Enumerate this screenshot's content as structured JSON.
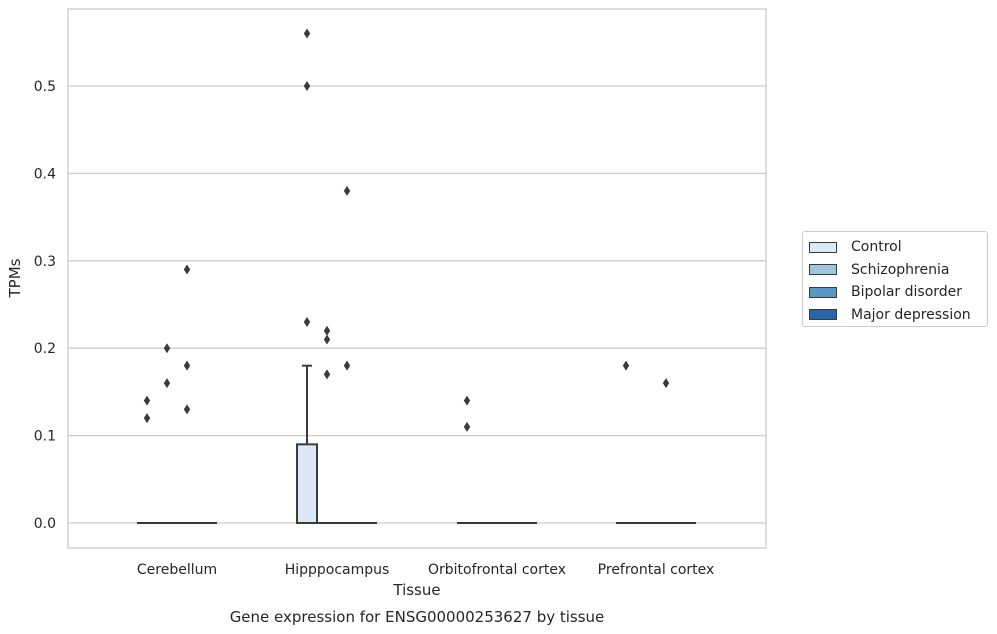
{
  "chart_data": {
    "type": "box",
    "caption": "Gene expression for ENSG00000253627 by tissue",
    "xlabel": "Tissue",
    "ylabel": "TPMs",
    "ylim": [
      -0.028,
      0.59
    ],
    "yticks": [
      0.0,
      0.1,
      0.2,
      0.3,
      0.4,
      0.5
    ],
    "ytick_labels": [
      "0.0",
      "0.1",
      "0.2",
      "0.3",
      "0.4",
      "0.5"
    ],
    "grid": "horizontal",
    "categories": [
      "Cerebellum",
      "Hipppocampus",
      "Orbitofrontal cortex",
      "Prefrontal cortex"
    ],
    "series": [
      {
        "name": "Control",
        "color": "#dbe8f5"
      },
      {
        "name": "Schizophrenia",
        "color": "#a0c6de"
      },
      {
        "name": "Bipolar disorder",
        "color": "#5698c6"
      },
      {
        "name": "Major depression",
        "color": "#2566a8"
      }
    ],
    "boxes": [
      {
        "category": "Cerebellum",
        "series": "Control",
        "q1": 0.0,
        "median": 0.0,
        "q3": 0.0,
        "whisker_low": 0.0,
        "whisker_high": 0.0,
        "outliers": [
          0.12,
          0.14
        ]
      },
      {
        "category": "Cerebellum",
        "series": "Schizophrenia",
        "q1": 0.0,
        "median": 0.0,
        "q3": 0.0,
        "whisker_low": 0.0,
        "whisker_high": 0.0,
        "outliers": [
          0.16,
          0.2
        ]
      },
      {
        "category": "Cerebellum",
        "series": "Bipolar disorder",
        "q1": 0.0,
        "median": 0.0,
        "q3": 0.0,
        "whisker_low": 0.0,
        "whisker_high": 0.0,
        "outliers": [
          0.13,
          0.18,
          0.29
        ]
      },
      {
        "category": "Cerebellum",
        "series": "Major depression",
        "q1": 0.0,
        "median": 0.0,
        "q3": 0.0,
        "whisker_low": 0.0,
        "whisker_high": 0.0,
        "outliers": []
      },
      {
        "category": "Hipppocampus",
        "series": "Control",
        "q1": 0.0,
        "median": 0.0,
        "q3": 0.09,
        "whisker_low": 0.0,
        "whisker_high": 0.18,
        "outliers": [
          0.23,
          0.5,
          0.56
        ]
      },
      {
        "category": "Hipppocampus",
        "series": "Schizophrenia",
        "q1": 0.0,
        "median": 0.0,
        "q3": 0.0,
        "whisker_low": 0.0,
        "whisker_high": 0.0,
        "outliers": [
          0.17,
          0.21,
          0.22
        ]
      },
      {
        "category": "Hipppocampus",
        "series": "Bipolar disorder",
        "q1": 0.0,
        "median": 0.0,
        "q3": 0.0,
        "whisker_low": 0.0,
        "whisker_high": 0.0,
        "outliers": [
          0.18,
          0.38
        ]
      },
      {
        "category": "Hipppocampus",
        "series": "Major depression",
        "q1": 0.0,
        "median": 0.0,
        "q3": 0.0,
        "whisker_low": 0.0,
        "whisker_high": 0.0,
        "outliers": []
      },
      {
        "category": "Orbitofrontal cortex",
        "series": "Control",
        "q1": 0.0,
        "median": 0.0,
        "q3": 0.0,
        "whisker_low": 0.0,
        "whisker_high": 0.0,
        "outliers": [
          0.11,
          0.14
        ]
      },
      {
        "category": "Orbitofrontal cortex",
        "series": "Schizophrenia",
        "q1": 0.0,
        "median": 0.0,
        "q3": 0.0,
        "whisker_low": 0.0,
        "whisker_high": 0.0,
        "outliers": []
      },
      {
        "category": "Orbitofrontal cortex",
        "series": "Bipolar disorder",
        "q1": 0.0,
        "median": 0.0,
        "q3": 0.0,
        "whisker_low": 0.0,
        "whisker_high": 0.0,
        "outliers": []
      },
      {
        "category": "Orbitofrontal cortex",
        "series": "Major depression",
        "q1": 0.0,
        "median": 0.0,
        "q3": 0.0,
        "whisker_low": 0.0,
        "whisker_high": 0.0,
        "outliers": []
      },
      {
        "category": "Prefrontal cortex",
        "series": "Control",
        "q1": 0.0,
        "median": 0.0,
        "q3": 0.0,
        "whisker_low": 0.0,
        "whisker_high": 0.0,
        "outliers": [
          0.18
        ]
      },
      {
        "category": "Prefrontal cortex",
        "series": "Schizophrenia",
        "q1": 0.0,
        "median": 0.0,
        "q3": 0.0,
        "whisker_low": 0.0,
        "whisker_high": 0.0,
        "outliers": []
      },
      {
        "category": "Prefrontal cortex",
        "series": "Bipolar disorder",
        "q1": 0.0,
        "median": 0.0,
        "q3": 0.0,
        "whisker_low": 0.0,
        "whisker_high": 0.0,
        "outliers": [
          0.16
        ]
      },
      {
        "category": "Prefrontal cortex",
        "series": "Major depression",
        "q1": 0.0,
        "median": 0.0,
        "q3": 0.0,
        "whisker_low": 0.0,
        "whisker_high": 0.0,
        "outliers": []
      }
    ],
    "legend_position": "right",
    "colors": {
      "grid": "#cccccc",
      "frame": "#cccccc",
      "box_edge": "#3b3b3b",
      "text": "#262626"
    }
  }
}
